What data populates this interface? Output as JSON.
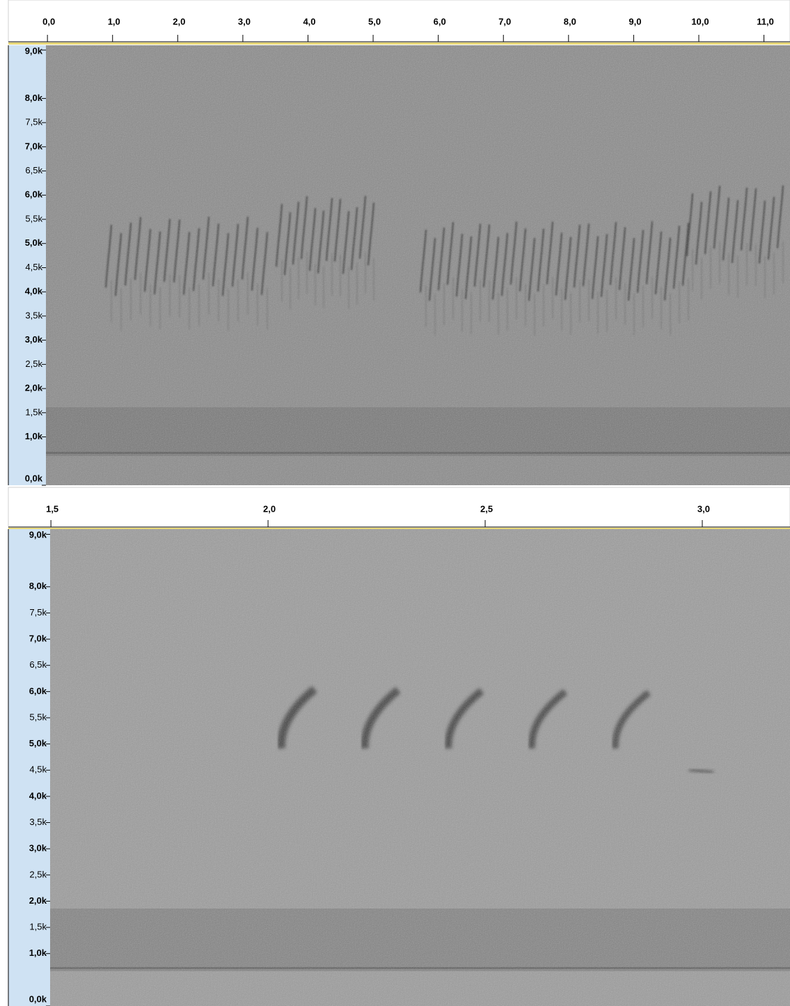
{
  "chart_data": [
    {
      "type": "spectrogram",
      "xlim": [
        -0.6,
        11.4
      ],
      "xticks": [
        {
          "value": 0,
          "label": "0,0"
        },
        {
          "value": 1,
          "label": "1,0"
        },
        {
          "value": 2,
          "label": "2,0"
        },
        {
          "value": 3,
          "label": "3,0"
        },
        {
          "value": 4,
          "label": "4,0"
        },
        {
          "value": 5,
          "label": "5,0"
        },
        {
          "value": 6,
          "label": "6,0"
        },
        {
          "value": 7,
          "label": "7,0"
        },
        {
          "value": 8,
          "label": "8,0"
        },
        {
          "value": 9,
          "label": "9,0"
        },
        {
          "value": 10,
          "label": "10,0"
        },
        {
          "value": 11,
          "label": "11,0"
        }
      ],
      "ylim": [
        0,
        9.1
      ],
      "yticks": [
        {
          "value": 9,
          "label": "9,0k"
        },
        {
          "value": 8,
          "label": "8,0k"
        },
        {
          "value": 7.5,
          "label": "7,5k"
        },
        {
          "value": 7,
          "label": "7,0k"
        },
        {
          "value": 6.5,
          "label": "6,5k"
        },
        {
          "value": 6,
          "label": "6,0k"
        },
        {
          "value": 5.5,
          "label": "5,5k"
        },
        {
          "value": 5,
          "label": "5,0k"
        },
        {
          "value": 4.5,
          "label": "4,5k"
        },
        {
          "value": 4,
          "label": "4,0k"
        },
        {
          "value": 3.5,
          "label": "3,5k"
        },
        {
          "value": 3,
          "label": "3,0k"
        },
        {
          "value": 2.5,
          "label": "2,5k"
        },
        {
          "value": 2,
          "label": "2,0k"
        },
        {
          "value": 1.5,
          "label": "1,5k"
        },
        {
          "value": 1,
          "label": "1,0k"
        },
        {
          "value": 0,
          "label": "0,0k"
        }
      ]
    },
    {
      "type": "spectrogram",
      "xlim": [
        1.402,
        3.202
      ],
      "xticks": [
        {
          "value": 1.5,
          "label": "1,5"
        },
        {
          "value": 2,
          "label": "2,0"
        },
        {
          "value": 2.5,
          "label": "2,5"
        },
        {
          "value": 3,
          "label": "3,0"
        }
      ],
      "ylim": [
        0,
        9.1
      ],
      "yticks": [
        {
          "value": 9,
          "label": "9,0k"
        },
        {
          "value": 8,
          "label": "8,0k"
        },
        {
          "value": 7.5,
          "label": "7,5k"
        },
        {
          "value": 7,
          "label": "7,0k"
        },
        {
          "value": 6.5,
          "label": "6,5k"
        },
        {
          "value": 6,
          "label": "6,0k"
        },
        {
          "value": 5.5,
          "label": "5,5k"
        },
        {
          "value": 5,
          "label": "5,0k"
        },
        {
          "value": 4.5,
          "label": "4,5k"
        },
        {
          "value": 4,
          "label": "4,0k"
        },
        {
          "value": 3.5,
          "label": "3,5k"
        },
        {
          "value": 3,
          "label": "3,0k"
        },
        {
          "value": 2.5,
          "label": "2,5k"
        },
        {
          "value": 2,
          "label": "2,0k"
        },
        {
          "value": 1.5,
          "label": "1,5k"
        },
        {
          "value": 1,
          "label": "1,0k"
        },
        {
          "value": 0,
          "label": "0,0k"
        }
      ]
    }
  ]
}
